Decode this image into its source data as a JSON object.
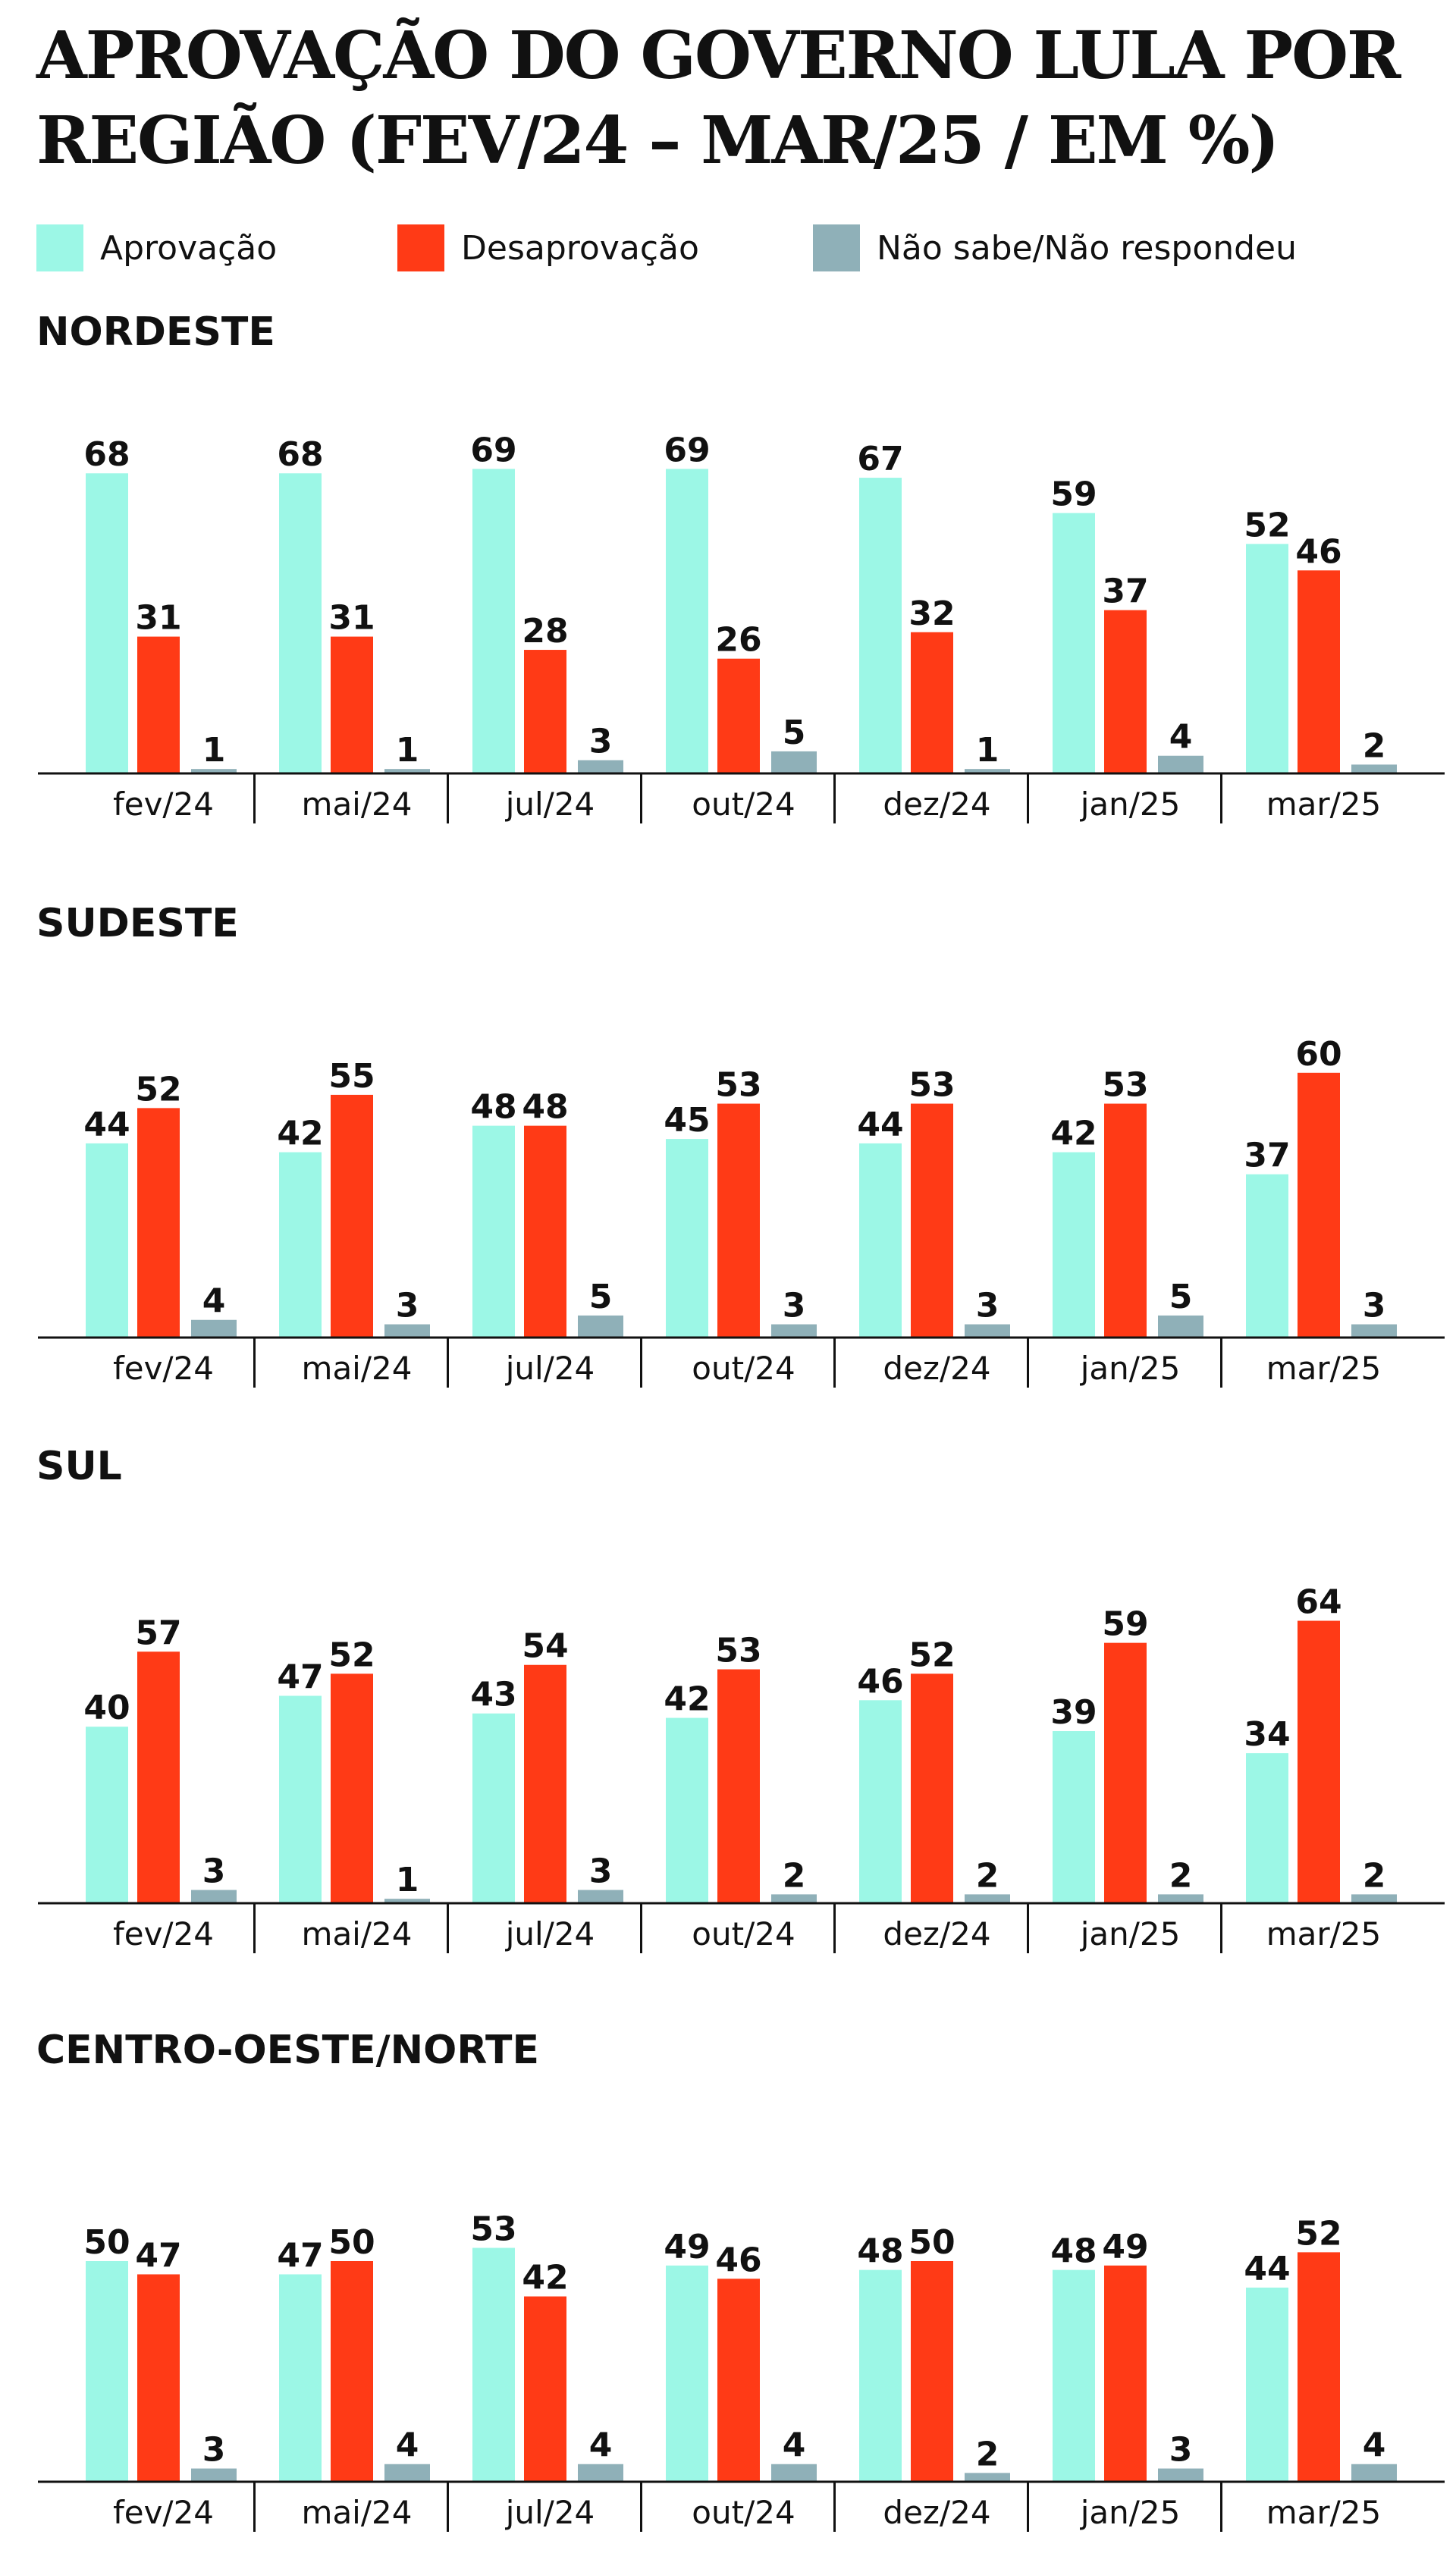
{
  "title": "APROVAÇÃO DO GOVERNO LULA POR REGIÃO (FEV/24 – MAR/25 / EM %)",
  "legend": [
    {
      "label": "Aprovação",
      "color": "#9cf7e6"
    },
    {
      "label": "Desaprovação",
      "color": "#ff3a16"
    },
    {
      "label": "Não sabe/Não respondeu",
      "color": "#8fb0b8"
    }
  ],
  "chart_data": [
    {
      "type": "bar",
      "title": "NORDESTE",
      "categories": [
        "fev/24",
        "mai/24",
        "jul/24",
        "out/24",
        "dez/24",
        "jan/25",
        "mar/25"
      ],
      "series": [
        {
          "name": "Aprovação",
          "values": [
            68,
            68,
            69,
            69,
            67,
            59,
            52
          ]
        },
        {
          "name": "Desaprovação",
          "values": [
            31,
            31,
            28,
            26,
            32,
            37,
            46
          ]
        },
        {
          "name": "Não sabe/Não respondeu",
          "values": [
            1,
            1,
            3,
            5,
            1,
            4,
            2
          ]
        }
      ],
      "ylim": [
        0,
        70
      ]
    },
    {
      "type": "bar",
      "title": "SUDESTE",
      "categories": [
        "fev/24",
        "mai/24",
        "jul/24",
        "out/24",
        "dez/24",
        "jan/25",
        "mar/25"
      ],
      "series": [
        {
          "name": "Aprovação",
          "values": [
            44,
            42,
            48,
            45,
            44,
            42,
            37
          ]
        },
        {
          "name": "Desaprovação",
          "values": [
            52,
            55,
            48,
            53,
            53,
            53,
            60
          ]
        },
        {
          "name": "Não sabe/Não respondeu",
          "values": [
            4,
            3,
            5,
            3,
            3,
            5,
            3
          ]
        }
      ],
      "ylim": [
        0,
        70
      ]
    },
    {
      "type": "bar",
      "title": "SUL",
      "categories": [
        "fev/24",
        "mai/24",
        "jul/24",
        "out/24",
        "dez/24",
        "jan/25",
        "mar/25"
      ],
      "series": [
        {
          "name": "Aprovação",
          "values": [
            40,
            47,
            43,
            42,
            46,
            39,
            34
          ]
        },
        {
          "name": "Desaprovação",
          "values": [
            57,
            52,
            54,
            53,
            52,
            59,
            64
          ]
        },
        {
          "name": "Não sabe/Não respondeu",
          "values": [
            3,
            1,
            3,
            2,
            2,
            2,
            2
          ]
        }
      ],
      "ylim": [
        0,
        70
      ]
    },
    {
      "type": "bar",
      "title": "CENTRO-OESTE/NORTE",
      "categories": [
        "fev/24",
        "mai/24",
        "jul/24",
        "out/24",
        "dez/24",
        "jan/25",
        "mar/25"
      ],
      "series": [
        {
          "name": "Aprovação",
          "values": [
            50,
            47,
            53,
            49,
            48,
            48,
            44
          ]
        },
        {
          "name": "Desaprovação",
          "values": [
            47,
            50,
            42,
            46,
            50,
            49,
            52
          ]
        },
        {
          "name": "Não sabe/Não respondeu",
          "values": [
            3,
            4,
            4,
            4,
            2,
            3,
            4
          ]
        }
      ],
      "ylim": [
        0,
        70
      ]
    }
  ]
}
